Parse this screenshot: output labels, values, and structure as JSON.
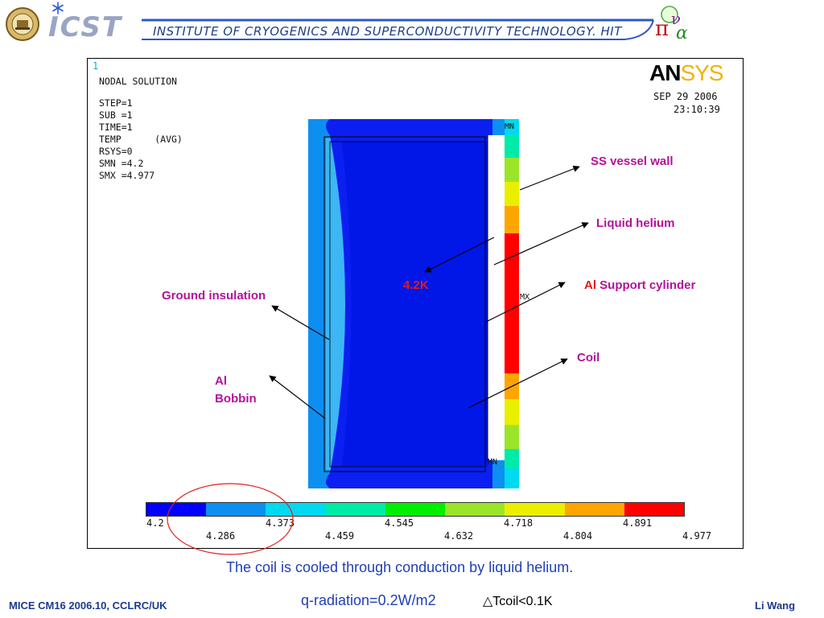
{
  "header": {
    "logo_text": "ICST",
    "banner": "INSTITUTE OF CRYOGENICS AND SUPERCONDUCTIVITY TECHNOLOGY. HIT"
  },
  "ansys": {
    "window_num": "1",
    "title": "NODAL SOLUTION",
    "params": [
      "STEP=1",
      "SUB =1",
      "TIME=1",
      "TEMP      (AVG)",
      "RSYS=0",
      "SMN =4.2",
      "SMX =4.977"
    ],
    "logo_an": "AN",
    "logo_sys": "SYS",
    "date": "SEP 29 2006",
    "time": "23:10:39",
    "mn_marker_top": "MN",
    "mx_marker": "MX",
    "mn_marker_bottom": "MN"
  },
  "legend": {
    "colors": [
      "#0000ff",
      "#0d8ff1",
      "#00d9ef",
      "#00eca6",
      "#00ee00",
      "#9ae52a",
      "#eaef00",
      "#ffa500",
      "#ff0000"
    ],
    "upper_ticks": [
      "4.2",
      "4.373",
      "4.545",
      "4.718",
      "4.891"
    ],
    "lower_ticks": [
      "4.286",
      "4.459",
      "4.632",
      "4.804",
      "4.977"
    ]
  },
  "annotations": {
    "ss_vessel_wall": "SS vessel wall",
    "liquid_helium": "Liquid helium",
    "temp_4_2k": "4.2K",
    "al_prefix": "Al",
    "support_cylinder": " Support cylinder",
    "ground_insulation": "Ground insulation",
    "coil": "Coil",
    "al_bobbin_1": "Al",
    "al_bobbin_2": "Bobbin"
  },
  "caption": "The coil is cooled through conduction by liquid helium.",
  "formula": {
    "q_rad": "q-radiation=0.2W/m2",
    "delta_t": "△Tcoil<0.1K"
  },
  "footer": {
    "left": "MICE CM16 2006.10, CCLRC/UK",
    "right": "Li Wang"
  }
}
